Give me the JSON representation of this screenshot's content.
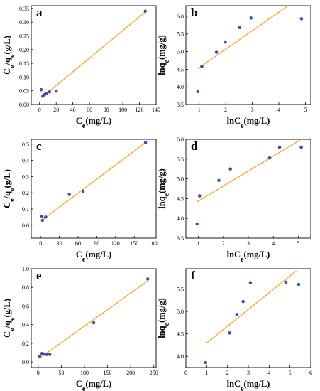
{
  "colors": {
    "fit_line": "#F5A623",
    "marker_fill": "#3F51B5",
    "axes": "#000000"
  },
  "chart_data": [
    {
      "panel_label": "a",
      "type": "scatter",
      "xlabel": "Ce(mg/L)",
      "ylabel": "Ce/qe(g/L)",
      "xlim": [
        -10,
        140
      ],
      "ylim": [
        0,
        0.36
      ],
      "xticks": [
        "0",
        "20",
        "40",
        "60",
        "80",
        "100",
        "120",
        "140"
      ],
      "yticks": [
        "0.00",
        "0.05",
        "0.10",
        "0.15",
        "0.20",
        "0.25",
        "0.30",
        "0.35"
      ],
      "series": [
        {
          "x": [
            2,
            4,
            6,
            8,
            12,
            20,
            127
          ],
          "y": [
            0.054,
            0.031,
            0.036,
            0.04,
            0.046,
            0.049,
            0.34
          ]
        }
      ],
      "fit_line": {
        "x": [
          2,
          127
        ],
        "y": [
          0.024,
          0.337
        ]
      }
    },
    {
      "panel_label": "b",
      "type": "scatter",
      "xlabel": "lnCe(mg/L)",
      "ylabel": "lnqe(mg/g)",
      "xlim": [
        0.5,
        5.2
      ],
      "ylim": [
        3.5,
        6.3
      ],
      "xticks": [
        "1",
        "2",
        "3",
        "4",
        "5"
      ],
      "yticks": [
        "3.5",
        "4.0",
        "4.5",
        "5.0",
        "5.5",
        "6.0"
      ],
      "series": [
        {
          "x": [
            0.95,
            1.1,
            1.65,
            1.98,
            2.52,
            2.95,
            4.85
          ],
          "y": [
            3.87,
            4.58,
            4.98,
            5.27,
            5.68,
            5.95,
            5.93
          ]
        }
      ],
      "fit_line": {
        "x": [
          0.95,
          4.35
        ],
        "y": [
          4.52,
          6.3
        ]
      }
    },
    {
      "panel_label": "c",
      "type": "scatter",
      "xlabel": "Ce(mg/L)",
      "ylabel": "Ce/qe(g/L)",
      "xlim": [
        -15,
        185
      ],
      "ylim": [
        -0.08,
        0.53
      ],
      "xticks": [
        "0",
        "30",
        "60",
        "90",
        "120",
        "150",
        "180"
      ],
      "yticks": [
        "0.0",
        "0.1",
        "0.2",
        "0.3",
        "0.4",
        "0.5"
      ],
      "series": [
        {
          "x": [
            2,
            3,
            8,
            46,
            68,
            168
          ],
          "y": [
            0.055,
            0.03,
            0.05,
            0.19,
            0.21,
            0.51
          ]
        }
      ],
      "fit_line": {
        "x": [
          2,
          168
        ],
        "y": [
          0.03,
          0.51
        ]
      }
    },
    {
      "panel_label": "d",
      "type": "scatter",
      "xlabel": "lnCe(mg/L)",
      "ylabel": "lnqe(mg/g)",
      "xlim": [
        0.5,
        5.5
      ],
      "ylim": [
        3.5,
        6.0
      ],
      "xticks": [
        "1",
        "2",
        "3",
        "4",
        "5"
      ],
      "yticks": [
        "3.5",
        "4.0",
        "4.5",
        "5.0",
        "5.5",
        "6.0"
      ],
      "series": [
        {
          "x": [
            0.95,
            1.05,
            1.82,
            2.28,
            3.85,
            4.25,
            5.12
          ],
          "y": [
            3.86,
            4.57,
            4.96,
            5.25,
            5.53,
            5.8,
            5.8
          ]
        }
      ],
      "fit_line": {
        "x": [
          0.95,
          5.12
        ],
        "y": [
          4.42,
          6.0
        ]
      }
    },
    {
      "panel_label": "e",
      "type": "scatter",
      "xlabel": "Ce(mg/L)",
      "ylabel": "Ce/qe(g/L)",
      "xlim": [
        -15,
        255
      ],
      "ylim": [
        -0.06,
        1.0
      ],
      "xticks": [
        "0",
        "50",
        "100",
        "150",
        "200",
        "250"
      ],
      "yticks": [
        "0.0",
        "0.2",
        "0.4",
        "0.6",
        "0.8",
        "1.0"
      ],
      "series": [
        {
          "x": [
            3,
            8,
            12,
            18,
            25,
            120,
            237
          ],
          "y": [
            0.06,
            0.09,
            0.085,
            0.08,
            0.08,
            0.42,
            0.89
          ]
        }
      ],
      "fit_line": {
        "x": [
          3,
          237
        ],
        "y": [
          0.04,
          0.87
        ]
      }
    },
    {
      "panel_label": "f",
      "type": "scatter",
      "xlabel": "lnCe(mg/L)",
      "ylabel": "lnqe(mg/g)",
      "xlim": [
        0,
        6
      ],
      "ylim": [
        3.75,
        5.95
      ],
      "xticks": [
        "0",
        "1",
        "2",
        "3",
        "4",
        "5",
        "6"
      ],
      "yticks": [
        "4.0",
        "4.5",
        "5.0",
        "5.5"
      ],
      "series": [
        {
          "x": [
            0.95,
            2.1,
            2.45,
            2.75,
            3.1,
            4.8,
            5.42
          ],
          "y": [
            3.86,
            4.52,
            4.93,
            5.22,
            5.64,
            5.65,
            5.6
          ]
        }
      ],
      "fit_line": {
        "x": [
          0.95,
          5.3
        ],
        "y": [
          4.28,
          5.9
        ]
      }
    }
  ]
}
